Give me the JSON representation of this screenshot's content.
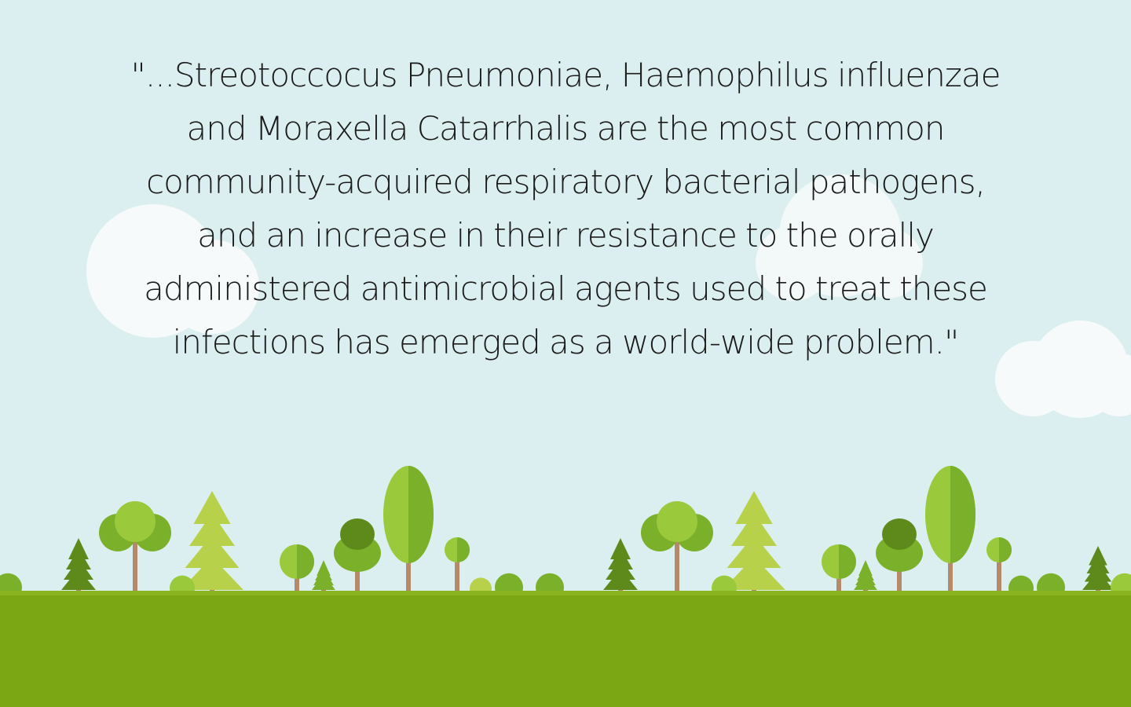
{
  "quote": {
    "text": "\"...Streotoccocus Pneumoniae, Haemophilus influenzae and Moraxella Catarrhalis are the most common community-acquired respiratory bacterial pathogens, and an increase in their resistance to the orally administered antimicrobial agents used to treat these infections has emerged as a world-wide problem.\""
  },
  "colors": {
    "sky": "#dbeff0",
    "cloud": "#f7fafa",
    "ground": "#7ca714",
    "trunk": "#b58a6a",
    "leaf_dark": "#5e8a1c",
    "leaf_mid": "#7bb02a",
    "leaf_light": "#9bc93c",
    "leaf_pale": "#b7d24a"
  }
}
